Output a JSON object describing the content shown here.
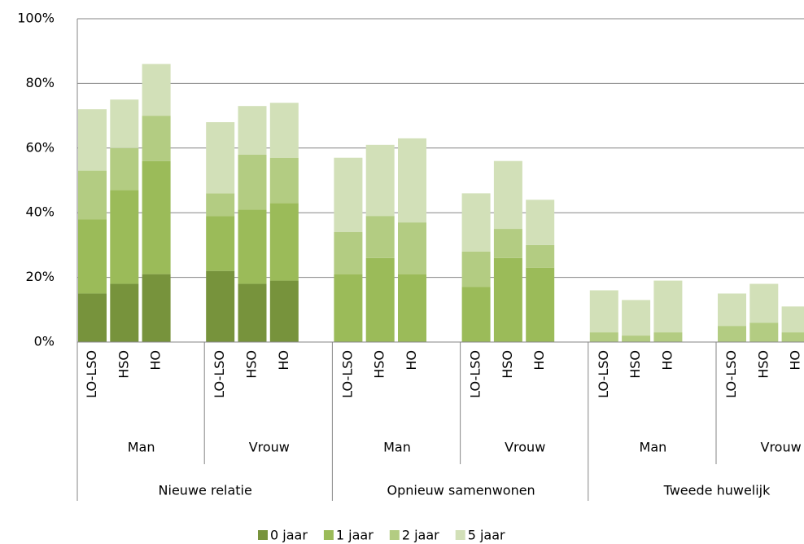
{
  "chart_data": {
    "type": "stacked_bar",
    "groups": [
      {
        "name": "Nieuwe relatie",
        "subgroups": [
          {
            "name": "Man",
            "categories": [
              "LO-LSO",
              "HSO",
              "HO"
            ]
          },
          {
            "name": "Vrouw",
            "categories": [
              "LO-LSO",
              "HSO",
              "HO"
            ]
          }
        ]
      },
      {
        "name": "Opnieuw samenwonen",
        "subgroups": [
          {
            "name": "Man",
            "categories": [
              "LO-LSO",
              "HSO",
              "HO"
            ]
          },
          {
            "name": "Vrouw",
            "categories": [
              "LO-LSO",
              "HSO",
              "HO"
            ]
          }
        ]
      },
      {
        "name": "Tweede huwelijk",
        "subgroups": [
          {
            "name": "Man",
            "categories": [
              "LO-LSO",
              "HSO",
              "HO"
            ]
          },
          {
            "name": "Vrouw",
            "categories": [
              "LO-LSO",
              "HSO",
              "HO"
            ]
          }
        ]
      }
    ],
    "series": [
      {
        "name": "0 jaar",
        "color": "#77933c",
        "values": [
          15,
          18,
          21,
          22,
          18,
          19,
          0,
          0,
          0,
          0,
          0,
          0,
          0,
          0,
          0,
          0,
          0,
          0
        ]
      },
      {
        "name": "1 jaar",
        "color": "#9bbb59",
        "values": [
          23,
          29,
          35,
          17,
          23,
          24,
          21,
          26,
          21,
          17,
          26,
          23,
          0,
          0,
          0,
          0,
          0,
          0
        ]
      },
      {
        "name": "2 jaar",
        "color": "#b3cc82",
        "values": [
          15,
          13,
          14,
          7,
          17,
          14,
          13,
          13,
          16,
          11,
          9,
          7,
          3,
          2,
          3,
          5,
          6,
          3
        ]
      },
      {
        "name": "5 jaar",
        "color": "#d2e0b8",
        "values": [
          19,
          15,
          16,
          22,
          15,
          17,
          23,
          22,
          26,
          18,
          21,
          14,
          13,
          11,
          16,
          10,
          12,
          8
        ]
      }
    ],
    "ylim": [
      0,
      100
    ],
    "yticks": [
      {
        "value": 0,
        "label": "0%"
      },
      {
        "value": 20,
        "label": "20%"
      },
      {
        "value": 40,
        "label": "40%"
      },
      {
        "value": 60,
        "label": "60%"
      },
      {
        "value": 80,
        "label": "80%"
      },
      {
        "value": 100,
        "label": "100%"
      }
    ],
    "grid": true,
    "legend": "bottom"
  }
}
